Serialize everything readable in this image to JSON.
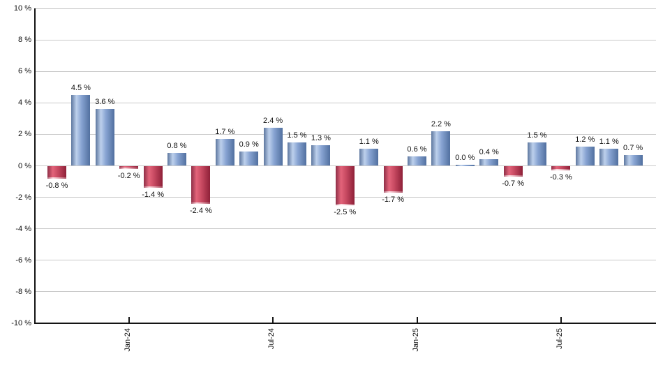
{
  "chart_data": {
    "type": "bar",
    "title": "",
    "xlabel": "",
    "ylabel": "",
    "unit": "%",
    "ylim": [
      -10,
      10
    ],
    "grid": true,
    "legend": false,
    "values": [
      -0.8,
      4.5,
      3.6,
      -0.2,
      -1.4,
      0.8,
      -2.4,
      1.7,
      0.9,
      2.4,
      1.5,
      1.3,
      -2.5,
      1.1,
      -1.7,
      0.6,
      2.2,
      0.0,
      0.4,
      -0.7,
      1.5,
      -0.3,
      1.2,
      1.1,
      0.7
    ],
    "value_labels": [
      "-0.8 %",
      "4.5 %",
      "3.6 %",
      "-0.2 %",
      "-1.4 %",
      "0.8 %",
      "-2.4 %",
      "1.7 %",
      "0.9 %",
      "2.4 %",
      "1.5 %",
      "1.3 %",
      "-2.5 %",
      "1.1 %",
      "-1.7 %",
      "0.6 %",
      "2.2 %",
      "0.0 %",
      "0.4 %",
      "-0.7 %",
      "1.5 %",
      "-0.3 %",
      "1.2 %",
      "1.1 %",
      "0.7 %"
    ],
    "x_ticks": [
      {
        "index": 3,
        "label": "Jan-24"
      },
      {
        "index": 9,
        "label": "Jul-24"
      },
      {
        "index": 15,
        "label": "Jan-25"
      },
      {
        "index": 21,
        "label": "Jul-25"
      }
    ],
    "y_ticks": [
      {
        "value": 10,
        "label": "10 %"
      },
      {
        "value": 8,
        "label": "8 %"
      },
      {
        "value": 6,
        "label": "6 %"
      },
      {
        "value": 4,
        "label": "4 %"
      },
      {
        "value": 2,
        "label": "2 %"
      },
      {
        "value": 0,
        "label": "0 %"
      },
      {
        "value": -2,
        "label": "-2 %"
      },
      {
        "value": -4,
        "label": "-4 %"
      },
      {
        "value": -6,
        "label": "-6 %"
      },
      {
        "value": -8,
        "label": "-8 %"
      },
      {
        "value": -10,
        "label": "-10 %"
      }
    ],
    "colors": {
      "positive_gradient": [
        "#5d779f",
        "#bdd0ec",
        "#87a3d2",
        "#51709f"
      ],
      "negative_gradient": [
        "#8e2f47",
        "#e3647a",
        "#c84a62",
        "#8e2038"
      ],
      "gridline": "#c9c9c9",
      "axis": "#141414",
      "text": "#111111",
      "background": "#ffffff"
    }
  }
}
